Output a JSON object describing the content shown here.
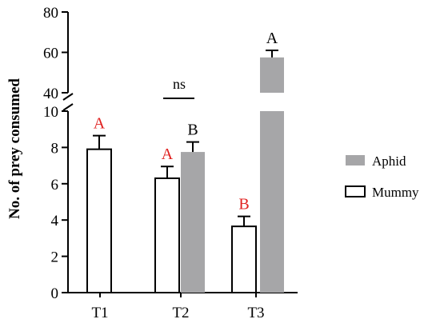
{
  "chart_data": {
    "type": "bar",
    "ylabel": "No. of prey consumed",
    "categories": [
      "T1",
      "T2",
      "T3"
    ],
    "y_axis": {
      "break": true,
      "lower_range": [
        0,
        10
      ],
      "upper_range": [
        40,
        80
      ],
      "lower_ticks": [
        "0",
        "2",
        "4",
        "6",
        "8",
        "10"
      ],
      "upper_ticks": [
        "40",
        "60",
        "80"
      ]
    },
    "series": [
      {
        "name": "Mummy",
        "fill": "#ffffff",
        "stroke": "#000000",
        "values": [
          7.9,
          6.3,
          3.65
        ],
        "errors": [
          0.75,
          0.65,
          0.55
        ],
        "letters": [
          "A",
          "A",
          "B"
        ],
        "letter_color": "#e0201f"
      },
      {
        "name": "Aphid",
        "fill": "#a6a6a8",
        "values": [
          null,
          7.75,
          57.5
        ],
        "errors": [
          null,
          0.55,
          3.5
        ],
        "letters": [
          "",
          "B",
          "A"
        ],
        "letter_color": "#000000"
      }
    ],
    "annotations": [
      {
        "text": "ns",
        "between": [
          "T2 Mummy",
          "T2 Aphid"
        ]
      }
    ],
    "legend": {
      "placement": "right",
      "entries": [
        "Aphid",
        "Mummy"
      ]
    }
  }
}
